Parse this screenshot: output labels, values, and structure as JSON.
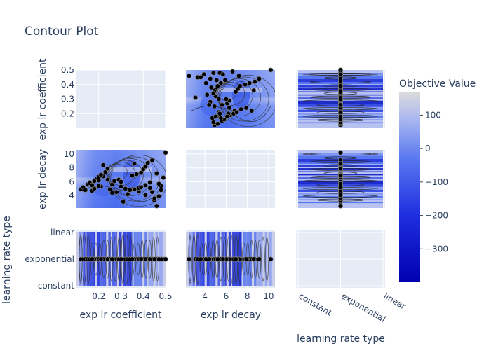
{
  "title": "Contour Plot",
  "colorbar": {
    "title": "Objective Value",
    "ticks": [
      100,
      0,
      -100,
      -200,
      -300
    ],
    "range": [
      -400,
      170
    ],
    "colors": {
      "high": "#dcdcdc",
      "mid": "#5a78f0",
      "low": "#0000b0"
    }
  },
  "colors": {
    "axes_bg": "#e5ecf6",
    "fill": "#7f97f2",
    "marker": "#000000",
    "marker_edge": "#888888"
  },
  "params": [
    {
      "name": "exp lr coefficient",
      "type": "numeric",
      "range": [
        0.1,
        0.5
      ],
      "ticks": [
        0.2,
        0.3,
        0.4,
        0.5
      ],
      "yticks": [
        0.2,
        0.3,
        0.4,
        0.5
      ]
    },
    {
      "name": "exp lr decay",
      "type": "numeric",
      "range": [
        2.2,
        10.6
      ],
      "ticks": [
        4,
        6,
        8,
        10
      ],
      "yticks": [
        4,
        6,
        8,
        10
      ]
    },
    {
      "name": "learning rate type",
      "type": "categorical",
      "categories": [
        "constant",
        "exponential",
        "linear"
      ]
    }
  ],
  "chart_data": {
    "type": "contour",
    "title": "Contour Plot",
    "grid": true,
    "legend": "colorbar right",
    "x_labels": [
      "exp lr coefficient",
      "exp lr decay",
      "learning rate type"
    ],
    "y_labels": [
      "exp lr coefficient",
      "exp lr decay",
      "learning rate type"
    ],
    "colorbar_title": "Objective Value",
    "colorbar_ticks": [
      100,
      0,
      -100,
      -200,
      -300
    ],
    "ranges": {
      "exp lr coefficient": [
        0.1,
        0.5
      ],
      "exp lr decay": [
        2.2,
        10.6
      ]
    },
    "categories": [
      "constant",
      "exponential",
      "linear"
    ],
    "trials": {
      "exp_lr_coefficient": [
        0.12,
        0.13,
        0.14,
        0.15,
        0.16,
        0.17,
        0.18,
        0.19,
        0.2,
        0.21,
        0.22,
        0.23,
        0.24,
        0.25,
        0.26,
        0.27,
        0.28,
        0.3,
        0.31,
        0.32,
        0.33,
        0.35,
        0.36,
        0.37,
        0.38,
        0.39,
        0.4,
        0.41,
        0.42,
        0.43,
        0.44,
        0.45,
        0.46,
        0.47,
        0.48,
        0.49,
        0.5,
        0.16,
        0.18,
        0.2,
        0.22,
        0.24,
        0.29,
        0.34,
        0.38,
        0.41,
        0.44,
        0.46,
        0.48,
        0.2,
        0.26,
        0.36,
        0.45,
        0.43,
        0.18,
        0.3,
        0.41,
        0.17,
        0.21,
        0.39,
        0.47,
        0.35
      ],
      "exp_lr_decay": [
        4.9,
        5.2,
        4.8,
        5.6,
        5.9,
        4.7,
        5.1,
        6.4,
        6.2,
        5.3,
        6.8,
        7.4,
        6.3,
        4.9,
        5.6,
        6.1,
        4.5,
        5.3,
        3.1,
        5.0,
        4.2,
        4.9,
        4.9,
        7.1,
        4.6,
        7.3,
        7.8,
        8.2,
        8.7,
        5.1,
        4.5,
        3.3,
        2.5,
        3.9,
        4.8,
        6.6,
        10.2,
        5.8,
        6.1,
        5.4,
        8.4,
        7.9,
        6.3,
        4.8,
        5.1,
        5.5,
        9.1,
        7.2,
        5.4,
        6.7,
        4.4,
        8.6,
        3.6,
        5.9,
        5.0,
        6.0,
        4.1,
        5.5,
        7.0,
        5.2,
        5.7,
        6.9
      ]
    }
  }
}
